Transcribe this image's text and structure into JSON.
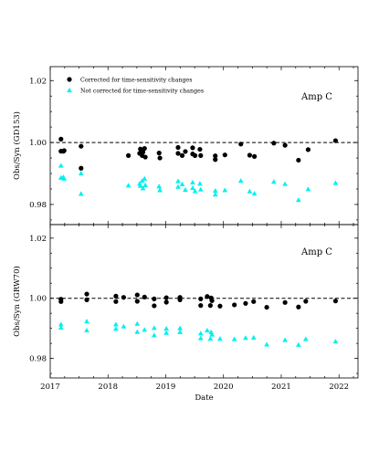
{
  "chart_data": [
    {
      "type": "scatter",
      "annotation": "Amp C",
      "ylabel": "Obs/Syn (GD153)",
      "xlabel": "",
      "xlim": [
        "2017-01-01",
        "2022-05-01"
      ],
      "ylim": [
        0.9735,
        1.0245
      ],
      "yticks": [
        0.98,
        1.0,
        1.02
      ],
      "ytick_labels": [
        "0.98",
        "1.00",
        "1.02"
      ],
      "xticks": [
        2017,
        2018,
        2019,
        2020,
        2021,
        2022
      ],
      "xtick_labels": [],
      "reference_line": 1.0,
      "legend": {
        "placement": "top-left"
      },
      "series": [
        {
          "name": "Corrected for time-sensitivity changes",
          "marker": "circle",
          "color": "#000000",
          "points": [
            [
              "2017-03-10",
              1.0011
            ],
            [
              "2017-03-10",
              0.9972
            ],
            [
              "2017-03-25",
              0.9972
            ],
            [
              "2017-03-30",
              0.9974
            ],
            [
              "2017-07-15",
              0.9988
            ],
            [
              "2017-07-15",
              0.9917
            ],
            [
              "2018-05-10",
              0.9958
            ],
            [
              "2018-07-20",
              0.9965
            ],
            [
              "2018-07-25",
              0.9979
            ],
            [
              "2018-08-05",
              0.9958
            ],
            [
              "2018-08-10",
              0.9969
            ],
            [
              "2018-08-20",
              0.9981
            ],
            [
              "2018-08-25",
              0.9953
            ],
            [
              "2018-11-20",
              0.9966
            ],
            [
              "2018-11-25",
              0.995
            ],
            [
              "2019-03-20",
              0.9984
            ],
            [
              "2019-03-20",
              0.9965
            ],
            [
              "2019-04-15",
              0.9958
            ],
            [
              "2019-05-05",
              0.9971
            ],
            [
              "2019-06-20",
              0.9983
            ],
            [
              "2019-06-20",
              0.9963
            ],
            [
              "2019-07-05",
              0.9958
            ],
            [
              "2019-08-05",
              0.9978
            ],
            [
              "2019-08-10",
              0.9958
            ],
            [
              "2019-11-10",
              0.9957
            ],
            [
              "2019-11-10",
              0.9945
            ],
            [
              "2020-01-10",
              0.996
            ],
            [
              "2020-04-20",
              0.9995
            ],
            [
              "2020-06-15",
              0.9959
            ],
            [
              "2020-07-15",
              0.9955
            ],
            [
              "2020-11-15",
              0.9998
            ],
            [
              "2021-01-25",
              0.9991
            ],
            [
              "2021-04-20",
              0.9943
            ],
            [
              "2021-06-20",
              0.9977
            ],
            [
              "2021-12-10",
              1.0006
            ]
          ]
        },
        {
          "name": "Not corrected for time-sensitivity changes",
          "marker": "triangle",
          "color": "#00f0f0",
          "points": [
            [
              "2017-03-10",
              0.9925
            ],
            [
              "2017-03-10",
              0.9886
            ],
            [
              "2017-03-25",
              0.9888
            ],
            [
              "2017-03-30",
              0.9883
            ],
            [
              "2017-07-15",
              0.99
            ],
            [
              "2017-07-15",
              0.9834
            ],
            [
              "2018-05-10",
              0.9861
            ],
            [
              "2018-07-20",
              0.9867
            ],
            [
              "2018-07-25",
              0.986
            ],
            [
              "2018-08-05",
              0.9876
            ],
            [
              "2018-08-10",
              0.9852
            ],
            [
              "2018-08-20",
              0.9883
            ],
            [
              "2018-08-25",
              0.9862
            ],
            [
              "2018-11-20",
              0.9858
            ],
            [
              "2018-11-25",
              0.9846
            ],
            [
              "2019-03-20",
              0.9875
            ],
            [
              "2019-03-20",
              0.9857
            ],
            [
              "2019-04-15",
              0.9865
            ],
            [
              "2019-05-05",
              0.9847
            ],
            [
              "2019-06-20",
              0.9871
            ],
            [
              "2019-06-20",
              0.9853
            ],
            [
              "2019-07-05",
              0.9843
            ],
            [
              "2019-08-05",
              0.9867
            ],
            [
              "2019-08-10",
              0.9848
            ],
            [
              "2019-11-10",
              0.9844
            ],
            [
              "2019-11-10",
              0.9832
            ],
            [
              "2020-01-10",
              0.9846
            ],
            [
              "2020-04-20",
              0.9876
            ],
            [
              "2020-06-15",
              0.9842
            ],
            [
              "2020-07-15",
              0.9835
            ],
            [
              "2020-11-15",
              0.9873
            ],
            [
              "2021-01-25",
              0.9866
            ],
            [
              "2021-04-20",
              0.9814
            ],
            [
              "2021-06-20",
              0.9849
            ],
            [
              "2021-12-10",
              0.9869
            ]
          ]
        }
      ]
    },
    {
      "type": "scatter",
      "annotation": "Amp C",
      "ylabel": "Obs/Syn (GRW70)",
      "xlabel": "Date",
      "xlim": [
        "2017-01-01",
        "2022-05-01"
      ],
      "ylim": [
        0.9735,
        1.0245
      ],
      "yticks": [
        0.98,
        1.0,
        1.02
      ],
      "ytick_labels": [
        "0.98",
        "1.00",
        "1.02"
      ],
      "xticks": [
        2017,
        2018,
        2019,
        2020,
        2021,
        2022
      ],
      "xtick_labels": [
        "2017",
        "2018",
        "2019",
        "2020",
        "2021",
        "2022"
      ],
      "reference_line": 1.0,
      "series": [
        {
          "name": "Corrected for time-sensitivity changes",
          "marker": "circle",
          "color": "#000000",
          "points": [
            [
              "2017-03-10",
              0.9997
            ],
            [
              "2017-03-10",
              0.9989
            ],
            [
              "2017-08-20",
              1.0014
            ],
            [
              "2017-08-20",
              0.9995
            ],
            [
              "2018-02-20",
              1.0007
            ],
            [
              "2018-02-20",
              0.9989
            ],
            [
              "2018-04-10",
              1.0003
            ],
            [
              "2018-07-05",
              1.0011
            ],
            [
              "2018-07-05",
              0.999
            ],
            [
              "2018-08-20",
              1.0004
            ],
            [
              "2018-10-20",
              0.9998
            ],
            [
              "2018-10-20",
              0.9975
            ],
            [
              "2019-01-05",
              1.0002
            ],
            [
              "2019-01-05",
              0.9987
            ],
            [
              "2019-04-01",
              1.0003
            ],
            [
              "2019-04-01",
              0.9995
            ],
            [
              "2019-08-10",
              0.9998
            ],
            [
              "2019-08-10",
              0.9976
            ],
            [
              "2019-09-20",
              1.0006
            ],
            [
              "2019-10-10",
              0.9976
            ],
            [
              "2019-10-15",
              1.0001
            ],
            [
              "2019-10-20",
              0.9992
            ],
            [
              "2019-12-10",
              0.9974
            ],
            [
              "2020-03-10",
              0.9978
            ],
            [
              "2020-05-20",
              0.9983
            ],
            [
              "2020-07-10",
              0.9989
            ],
            [
              "2020-10-01",
              0.997
            ],
            [
              "2021-01-25",
              0.9986
            ],
            [
              "2021-04-20",
              0.9971
            ],
            [
              "2021-06-05",
              0.999
            ],
            [
              "2021-12-10",
              0.9991
            ]
          ]
        },
        {
          "name": "Not corrected for time-sensitivity changes",
          "marker": "triangle",
          "color": "#00f0f0",
          "points": [
            [
              "2017-03-10",
              0.9913
            ],
            [
              "2017-03-10",
              0.9902
            ],
            [
              "2017-08-20",
              0.9923
            ],
            [
              "2017-08-20",
              0.9893
            ],
            [
              "2018-02-20",
              0.9913
            ],
            [
              "2018-02-20",
              0.9898
            ],
            [
              "2018-04-10",
              0.9906
            ],
            [
              "2018-07-05",
              0.9915
            ],
            [
              "2018-07-05",
              0.9888
            ],
            [
              "2018-08-20",
              0.9895
            ],
            [
              "2018-10-20",
              0.9901
            ],
            [
              "2018-10-20",
              0.9877
            ],
            [
              "2019-01-05",
              0.9899
            ],
            [
              "2019-01-05",
              0.9885
            ],
            [
              "2019-04-01",
              0.99
            ],
            [
              "2019-04-01",
              0.9887
            ],
            [
              "2019-08-10",
              0.9883
            ],
            [
              "2019-08-10",
              0.9867
            ],
            [
              "2019-09-20",
              0.9893
            ],
            [
              "2019-10-10",
              0.9865
            ],
            [
              "2019-10-15",
              0.9887
            ],
            [
              "2019-10-20",
              0.9879
            ],
            [
              "2019-12-10",
              0.9865
            ],
            [
              "2020-03-10",
              0.9864
            ],
            [
              "2020-05-20",
              0.9868
            ],
            [
              "2020-07-10",
              0.9869
            ],
            [
              "2020-10-01",
              0.9846
            ],
            [
              "2021-01-25",
              0.9861
            ],
            [
              "2021-04-20",
              0.9845
            ],
            [
              "2021-06-05",
              0.9864
            ],
            [
              "2021-12-10",
              0.9856
            ]
          ]
        }
      ]
    }
  ]
}
